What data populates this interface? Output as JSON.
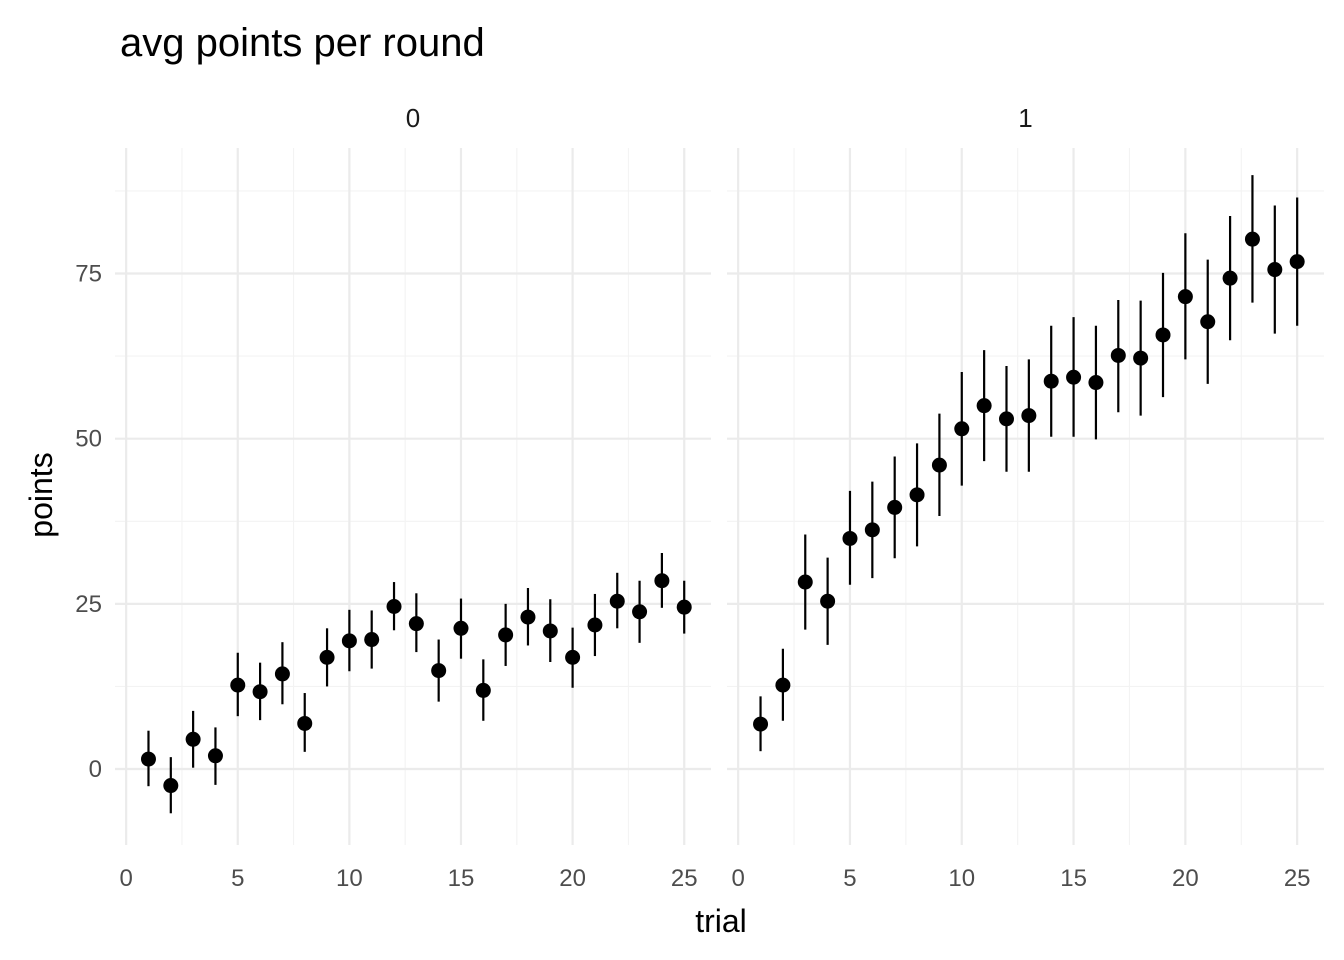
{
  "chart_data": {
    "type": "scatter",
    "title": "avg points per round",
    "xlabel": "trial",
    "ylabel": "points",
    "xlim": [
      -0.5,
      26.2
    ],
    "ylim": [
      -11.5,
      94.0
    ],
    "x_ticks": [
      0,
      5,
      10,
      15,
      20,
      25
    ],
    "x_tick_labels": [
      "0",
      "5",
      "10",
      "15",
      "20",
      "25"
    ],
    "y_ticks": [
      0,
      25,
      50,
      75
    ],
    "y_tick_labels": [
      "0",
      "25",
      "50",
      "75"
    ],
    "grid": true,
    "colors": {
      "points": "#000000",
      "grid": "#ebebeb"
    },
    "panels": [
      {
        "label": "0",
        "x": [
          1,
          2,
          3,
          4,
          5,
          6,
          7,
          8,
          9,
          10,
          11,
          12,
          13,
          14,
          15,
          16,
          17,
          18,
          19,
          20,
          21,
          22,
          23,
          24,
          25
        ],
        "y": [
          1.5,
          -2.5,
          4.5,
          2.0,
          12.7,
          11.7,
          14.4,
          6.9,
          16.9,
          19.4,
          19.6,
          24.6,
          22.0,
          14.9,
          21.3,
          11.9,
          20.3,
          23.0,
          20.9,
          16.9,
          21.8,
          25.4,
          23.8,
          28.5,
          24.5
        ],
        "ymin": [
          -2.6,
          -6.7,
          0.2,
          -2.4,
          8.0,
          7.4,
          9.8,
          2.6,
          12.5,
          14.8,
          15.2,
          21.0,
          17.7,
          10.2,
          16.7,
          7.3,
          15.6,
          18.7,
          16.2,
          12.3,
          17.1,
          21.3,
          19.1,
          24.4,
          20.5
        ],
        "ymax": [
          5.8,
          1.8,
          8.8,
          6.3,
          17.6,
          16.1,
          19.2,
          11.5,
          21.3,
          24.1,
          24.0,
          28.3,
          26.6,
          19.6,
          25.8,
          16.6,
          25.0,
          27.4,
          25.7,
          21.4,
          26.5,
          29.7,
          28.5,
          32.7,
          28.5
        ]
      },
      {
        "label": "1",
        "x": [
          1,
          2,
          3,
          4,
          5,
          6,
          7,
          8,
          9,
          10,
          11,
          12,
          13,
          14,
          15,
          16,
          17,
          18,
          19,
          20,
          21,
          22,
          23,
          24,
          25
        ],
        "y": [
          6.8,
          12.7,
          28.3,
          25.4,
          34.9,
          36.2,
          39.6,
          41.5,
          46.0,
          51.5,
          55.0,
          53.0,
          53.5,
          58.7,
          59.3,
          58.5,
          62.6,
          62.2,
          65.7,
          71.5,
          67.7,
          74.3,
          80.2,
          75.6,
          76.8
        ],
        "ymin": [
          2.7,
          7.3,
          21.1,
          18.8,
          27.9,
          28.9,
          31.9,
          33.7,
          38.3,
          42.9,
          46.6,
          45.0,
          45.0,
          50.3,
          50.3,
          49.9,
          54.0,
          53.5,
          56.3,
          62.0,
          58.3,
          64.9,
          70.6,
          65.9,
          67.1
        ],
        "ymax": [
          11.0,
          18.2,
          35.5,
          32.0,
          42.1,
          43.5,
          47.3,
          49.3,
          53.8,
          60.1,
          63.4,
          61.0,
          62.0,
          67.1,
          68.4,
          67.1,
          71.0,
          70.9,
          75.1,
          81.1,
          77.1,
          83.7,
          89.9,
          85.3,
          86.5
        ]
      }
    ]
  }
}
